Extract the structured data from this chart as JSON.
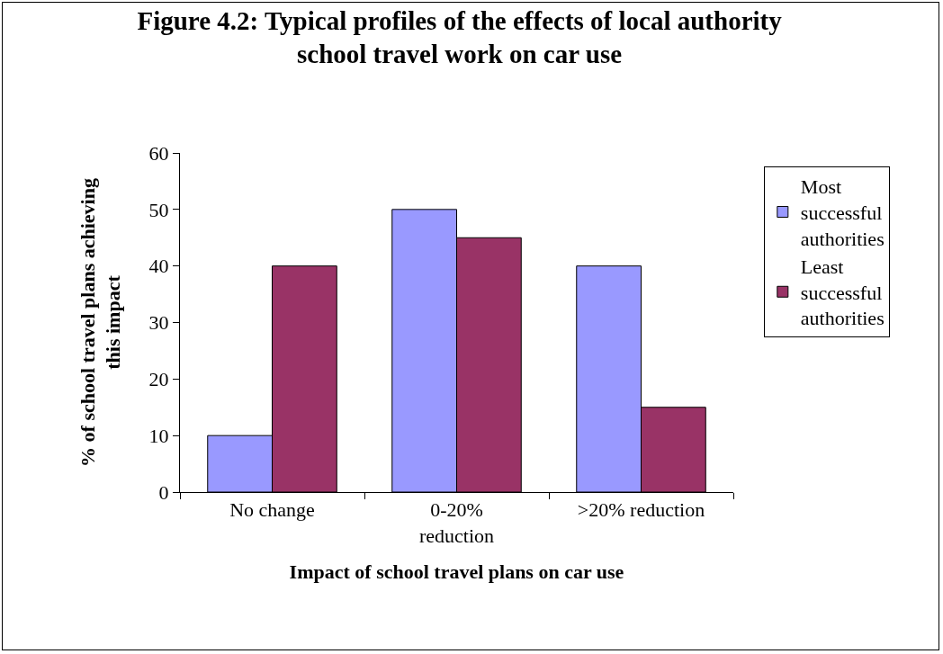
{
  "chart_data": {
    "type": "bar",
    "title": "Figure 4.2: Typical profiles of the effects of local authority\nschool travel work on car use",
    "xlabel": "Impact of school travel plans on car use",
    "ylabel": "% of school travel plans achieving\nthis impact",
    "categories": [
      "No change",
      "0-20%\nreduction",
      ">20% reduction"
    ],
    "series": [
      {
        "name": "Most successful authorities",
        "color": "#9999ff",
        "values": [
          10,
          50,
          40
        ]
      },
      {
        "name": "Least successful authorities",
        "color": "#993366",
        "values": [
          40,
          45,
          15
        ]
      }
    ],
    "ylim": [
      0,
      60
    ],
    "yticks": [
      0,
      10,
      20,
      30,
      40,
      50,
      60
    ],
    "grid": false,
    "legend": "right"
  }
}
